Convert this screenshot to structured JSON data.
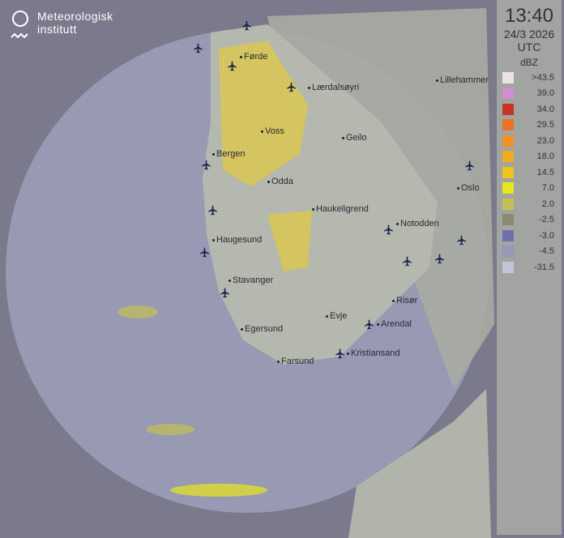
{
  "logo": {
    "line1": "Meteorologisk",
    "line2": "institutt"
  },
  "legend": {
    "time": "13:40",
    "date": "24/3 2026",
    "tz": "UTC",
    "unit": "dBZ",
    "items": [
      {
        "label": ">43.5",
        "color": "#ede3e6"
      },
      {
        "label": "39.0",
        "color": "#d08ed0"
      },
      {
        "label": "34.0",
        "color": "#cc3327"
      },
      {
        "label": "29.5",
        "color": "#ea7125"
      },
      {
        "label": "23.0",
        "color": "#ef9424"
      },
      {
        "label": "18.0",
        "color": "#efac20"
      },
      {
        "label": "14.5",
        "color": "#eec51c"
      },
      {
        "label": "7.0",
        "color": "#e9e61d"
      },
      {
        "label": "2.0",
        "color": "#c2c052"
      },
      {
        "label": "-2.5",
        "color": "#8a8a72"
      },
      {
        "label": "-3.0",
        "color": "#7070b0"
      },
      {
        "label": "-4.5",
        "color": "#9898b8"
      },
      {
        "label": "-31.5",
        "color": "#c4c4d8"
      }
    ]
  },
  "cities": [
    {
      "name": "Førde"
    },
    {
      "name": "Lærdalsøyri"
    },
    {
      "name": "Voss"
    },
    {
      "name": "Geilo"
    },
    {
      "name": "Bergen"
    },
    {
      "name": "Odda"
    },
    {
      "name": "Haukeligrend"
    },
    {
      "name": "Notodden"
    },
    {
      "name": "Oslo"
    },
    {
      "name": "Lillehammer"
    },
    {
      "name": "Haugesund"
    },
    {
      "name": "Stavanger"
    },
    {
      "name": "Risør"
    },
    {
      "name": "Evje"
    },
    {
      "name": "Arendal"
    },
    {
      "name": "Egersund"
    },
    {
      "name": "Kristiansand"
    },
    {
      "name": "Farsund"
    }
  ],
  "airport_icon": "airplane-icon"
}
